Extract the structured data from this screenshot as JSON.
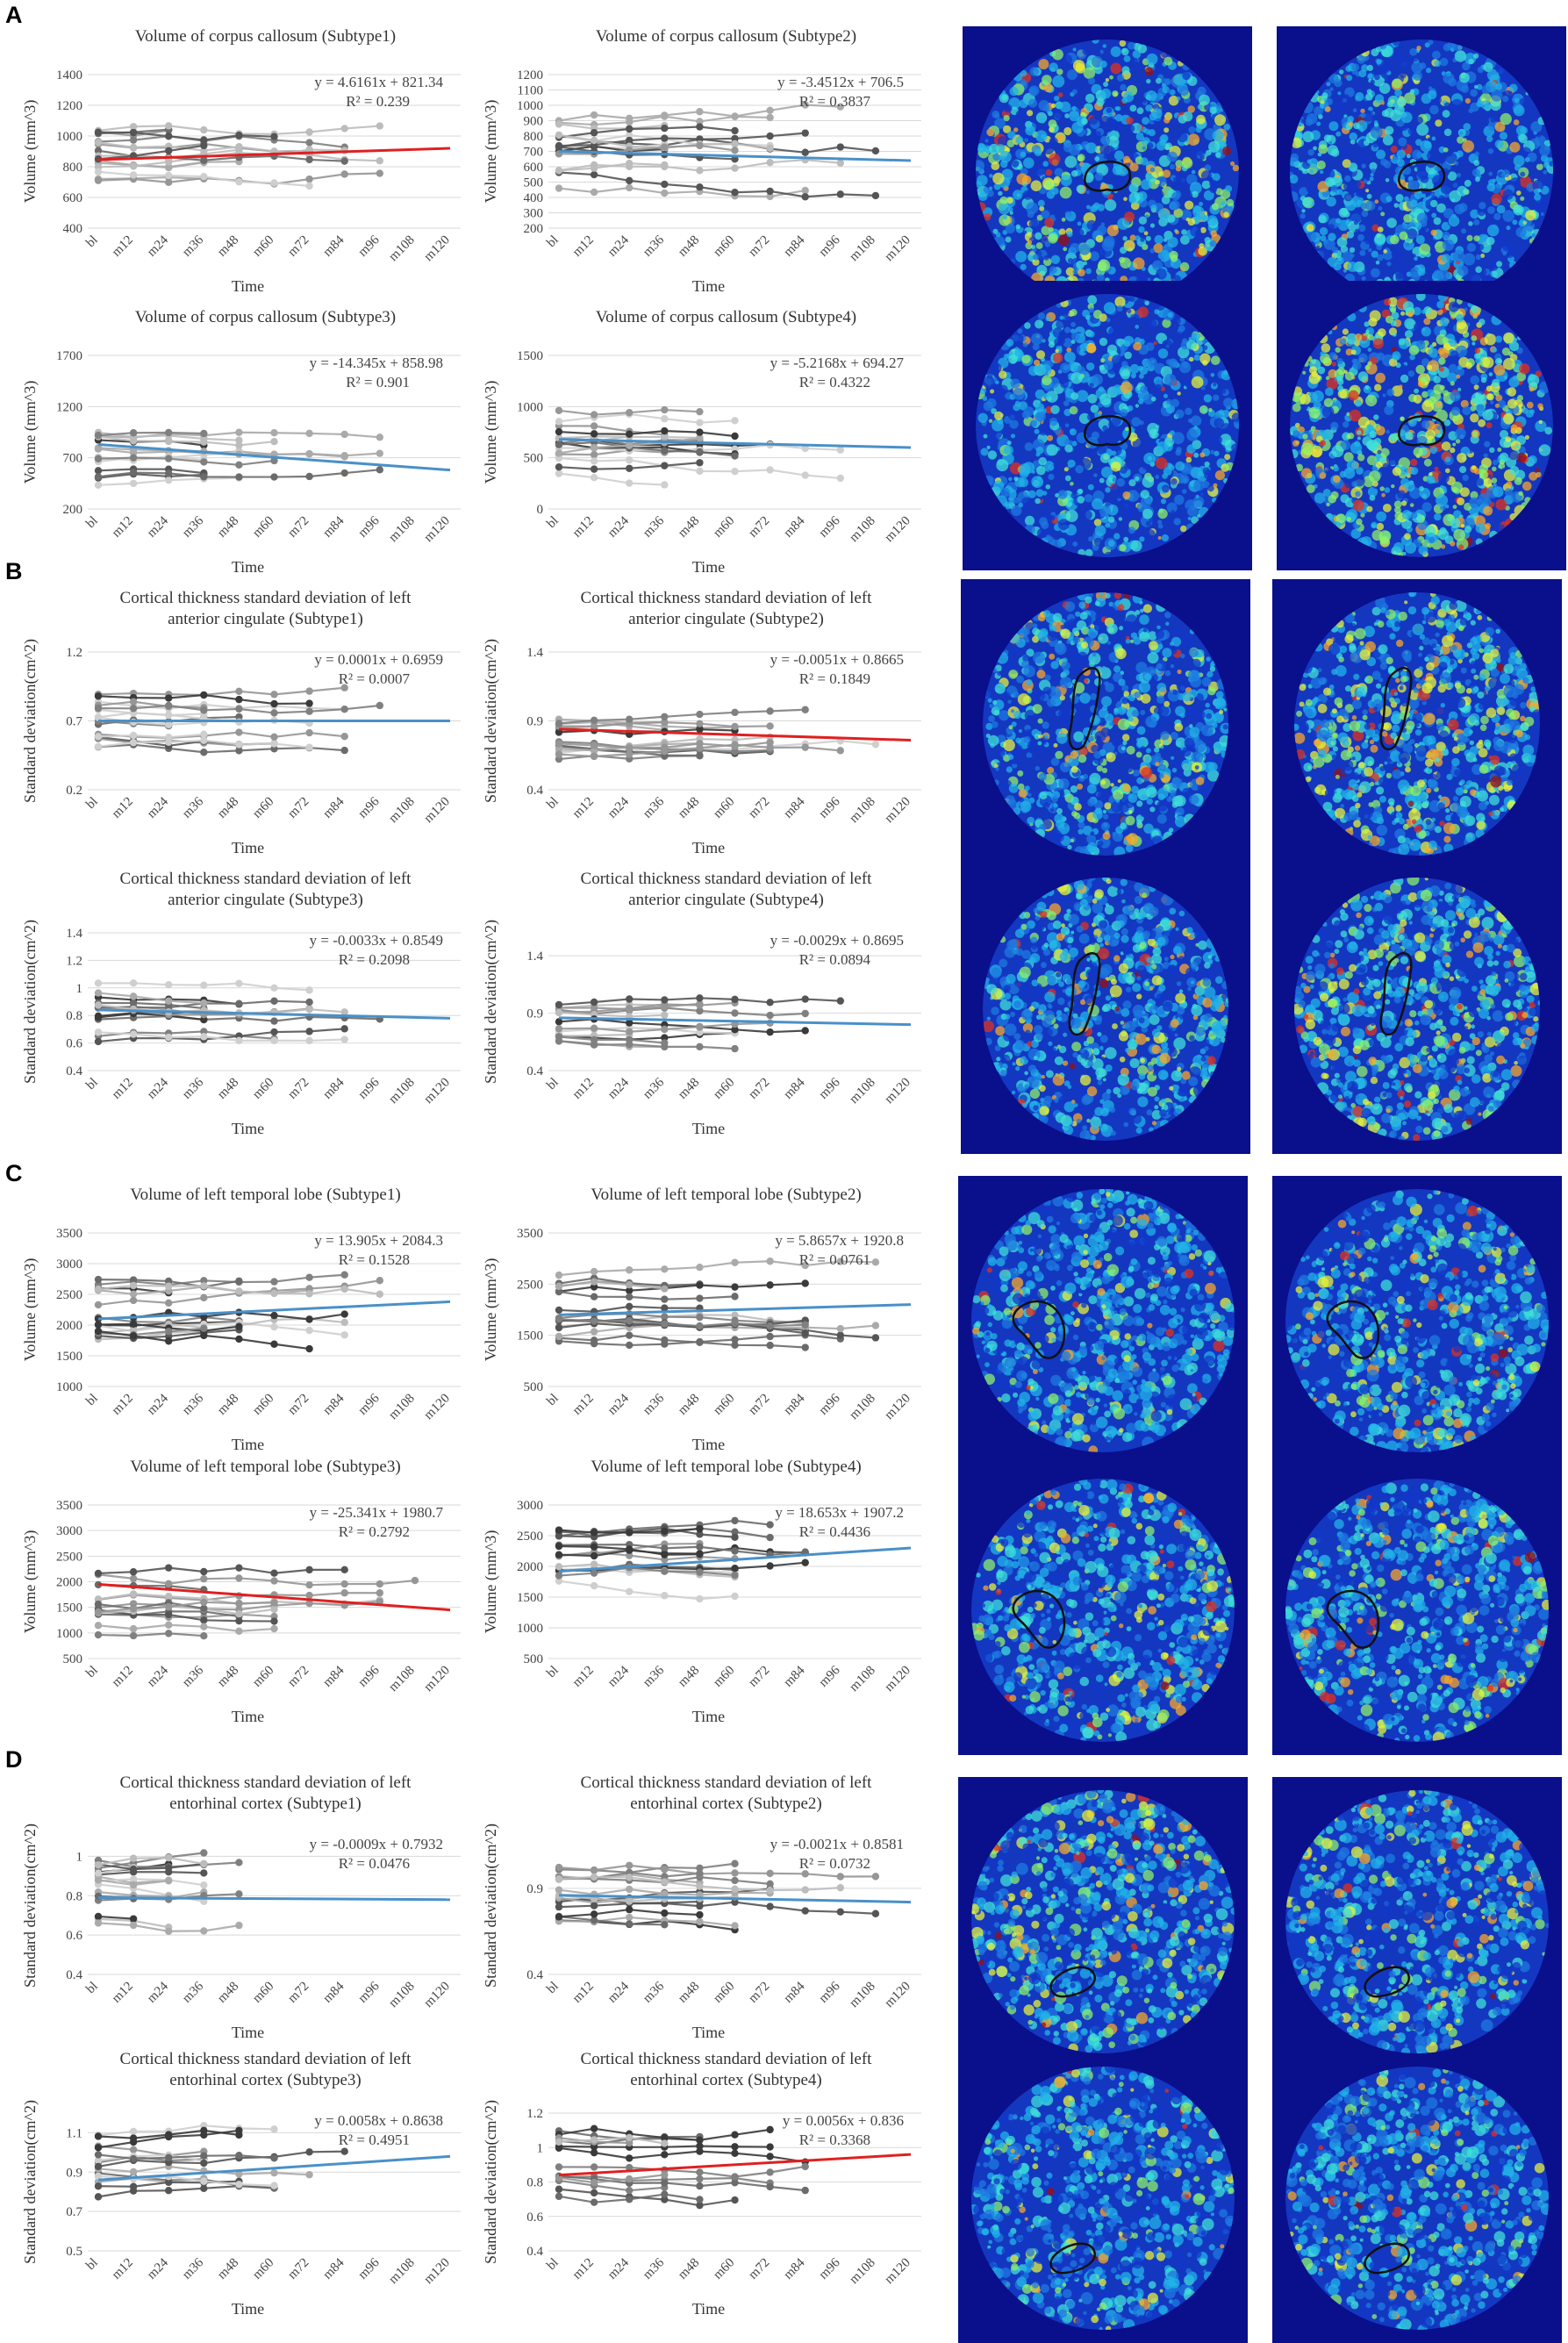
{
  "panel_labels": [
    "A",
    "B",
    "C",
    "D"
  ],
  "colors": {
    "trend_blue": "#4a90c8",
    "trend_red": "#e02020",
    "brain_bg": "#0a0f8c",
    "roi_outline": "#111111"
  },
  "chart_data": [
    {
      "type": "line",
      "panel": "A",
      "title": [
        "Volume of corpus callosum (Subtype1)"
      ],
      "xlabel": "Time",
      "ylabel": "Volume (mm^3)",
      "categories": [
        "bl",
        "m12",
        "m24",
        "m36",
        "m48",
        "m60",
        "m72",
        "m84",
        "m96",
        "m108",
        "m120"
      ],
      "yticks": [
        400,
        600,
        800,
        1000,
        1200,
        1400
      ],
      "ylim": [
        400,
        1400
      ],
      "equation": "y = 4.6161x + 821.34",
      "r2": "R² = 0.239",
      "trend_color": "red",
      "trend": [
        846,
        920
      ],
      "npts": 9,
      "spread": 200,
      "nlines": 16
    },
    {
      "type": "line",
      "panel": "A",
      "title": [
        "Volume of corpus callosum (Subtype2)"
      ],
      "xlabel": "Time",
      "ylabel": "Volume (mm^3)",
      "categories": [
        "bl",
        "m12",
        "m24",
        "m36",
        "m48",
        "m60",
        "m72",
        "m84",
        "m96",
        "m108",
        "m120"
      ],
      "yticks": [
        200,
        300,
        400,
        500,
        600,
        700,
        800,
        900,
        1000,
        1100,
        1200
      ],
      "ylim": [
        200,
        1200
      ],
      "equation": "y = -3.4512x + 706.5",
      "r2": "R² = 0.3837",
      "trend_color": "blue",
      "trend": [
        700,
        640
      ],
      "npts": 10,
      "spread": 230,
      "nlines": 16
    },
    {
      "type": "line",
      "panel": "A",
      "title": [
        "Volume of corpus callosum (Subtype3)"
      ],
      "xlabel": "Time",
      "ylabel": "Volume (mm^3)",
      "categories": [
        "bl",
        "m12",
        "m24",
        "m36",
        "m48",
        "m60",
        "m72",
        "m84",
        "m96",
        "m108",
        "m120"
      ],
      "yticks": [
        200,
        700,
        1200,
        1700
      ],
      "ylim": [
        200,
        1700
      ],
      "equation": "y = -14.345x + 858.98",
      "r2": "R² = 0.901",
      "trend_color": "blue",
      "trend": [
        830,
        580
      ],
      "npts": 9,
      "spread": 240,
      "nlines": 14
    },
    {
      "type": "line",
      "panel": "A",
      "title": [
        "Volume of corpus callosum (Subtype4)"
      ],
      "xlabel": "Time",
      "ylabel": "Volume (mm^3)",
      "categories": [
        "bl",
        "m12",
        "m24",
        "m36",
        "m48",
        "m60",
        "m72",
        "m84",
        "m96",
        "m108",
        "m120"
      ],
      "yticks": [
        0,
        500,
        1000,
        1500
      ],
      "ylim": [
        0,
        1500
      ],
      "equation": "y = -5.2168x + 694.27",
      "r2": "R² = 0.4322",
      "trend_color": "blue",
      "trend": [
        680,
        600
      ],
      "npts": 9,
      "spread": 320,
      "nlines": 16
    },
    {
      "type": "line",
      "panel": "B",
      "title": [
        "Cortical thickness standard deviation of left",
        "anterior cingulate (Subtype1)"
      ],
      "xlabel": "Time",
      "ylabel": "Standard deviation(cm^2)",
      "categories": [
        "bl",
        "m12",
        "m24",
        "m36",
        "m48",
        "m60",
        "m72",
        "m84",
        "m96",
        "m108",
        "m120"
      ],
      "yticks": [
        0.2,
        0.7,
        1.2
      ],
      "ylim": [
        0.2,
        1.2
      ],
      "equation": "y = 0.0001x + 0.6959",
      "r2": "R² = 0.0007",
      "trend_color": "blue",
      "trend": [
        0.7,
        0.7
      ],
      "npts": 9,
      "spread": 0.2,
      "nlines": 16
    },
    {
      "type": "line",
      "panel": "B",
      "title": [
        "Cortical thickness standard deviation of left",
        "anterior cingulate (Subtype2)"
      ],
      "xlabel": "Time",
      "ylabel": "Standard deviation(cm^2)",
      "categories": [
        "bl",
        "m12",
        "m24",
        "m36",
        "m48",
        "m60",
        "m72",
        "m84",
        "m96",
        "m108",
        "m120"
      ],
      "yticks": [
        0.4,
        0.9,
        1.4
      ],
      "ylim": [
        0.4,
        1.4
      ],
      "equation": "y = -0.0051x + 0.8665",
      "r2": "R² = 0.1849",
      "trend_color": "red",
      "trend": [
        0.84,
        0.76
      ],
      "npts": 10,
      "spread": 0.18,
      "nlines": 16
    },
    {
      "type": "line",
      "panel": "B",
      "title": [
        "Cortical thickness standard deviation of left",
        "anterior cingulate (Subtype3)"
      ],
      "xlabel": "Time",
      "ylabel": "Standard deviation(cm^2)",
      "categories": [
        "bl",
        "m12",
        "m24",
        "m36",
        "m48",
        "m60",
        "m72",
        "m84",
        "m96",
        "m108",
        "m120"
      ],
      "yticks": [
        0.4,
        0.6,
        0.8,
        1,
        1.2,
        1.4
      ],
      "ylim": [
        0.4,
        1.4
      ],
      "equation": "y = -0.0033x + 0.8549",
      "r2": "R² = 0.2098",
      "trend_color": "blue",
      "trend": [
        0.84,
        0.78
      ],
      "npts": 9,
      "spread": 0.2,
      "nlines": 14
    },
    {
      "type": "line",
      "panel": "B",
      "title": [
        "Cortical thickness standard deviation of left",
        "anterior cingulate (Subtype4)"
      ],
      "xlabel": "Time",
      "ylabel": "Standard deviation(cm^2)",
      "categories": [
        "bl",
        "m12",
        "m24",
        "m36",
        "m48",
        "m60",
        "m72",
        "m84",
        "m96",
        "m108",
        "m120"
      ],
      "yticks": [
        0.4,
        0.9,
        1.4
      ],
      "ylim": [
        0.4,
        1.6
      ],
      "equation": "y = -0.0029x + 0.8695",
      "r2": "R² = 0.0894",
      "trend_color": "blue",
      "trend": [
        0.86,
        0.8
      ],
      "npts": 9,
      "spread": 0.2,
      "nlines": 14
    },
    {
      "type": "line",
      "panel": "C",
      "title": [
        "Volume of left temporal lobe (Subtype1)"
      ],
      "xlabel": "Time",
      "ylabel": "Volume (mm^3)",
      "categories": [
        "bl",
        "m12",
        "m24",
        "m36",
        "m48",
        "m60",
        "m72",
        "m84",
        "m96",
        "m108",
        "m120"
      ],
      "yticks": [
        1000,
        1500,
        2000,
        2500,
        3000,
        3500
      ],
      "ylim": [
        1000,
        3500
      ],
      "equation": "y = 13.905x + 2084.3",
      "r2": "R² = 0.1528",
      "trend_color": "blue",
      "trend": [
        2100,
        2380
      ],
      "npts": 9,
      "spread": 550,
      "nlines": 16
    },
    {
      "type": "line",
      "panel": "C",
      "title": [
        "Volume of left temporal lobe (Subtype2)"
      ],
      "xlabel": "Time",
      "ylabel": "Volume (mm^3)",
      "categories": [
        "bl",
        "m12",
        "m24",
        "m36",
        "m48",
        "m60",
        "m72",
        "m84",
        "m96",
        "m108",
        "m120"
      ],
      "yticks": [
        500,
        1500,
        2500,
        3500
      ],
      "ylim": [
        500,
        3500
      ],
      "equation": "y = 5.8657x + 1920.8",
      "r2": "R² = 0.0761",
      "trend_color": "blue",
      "trend": [
        1900,
        2100
      ],
      "npts": 10,
      "spread": 600,
      "nlines": 16
    },
    {
      "type": "line",
      "panel": "C",
      "title": [
        "Volume of left temporal lobe (Subtype3)"
      ],
      "xlabel": "Time",
      "ylabel": "Volume (mm^3)",
      "categories": [
        "bl",
        "m12",
        "m24",
        "m36",
        "m48",
        "m60",
        "m72",
        "m84",
        "m96",
        "m108",
        "m120"
      ],
      "yticks": [
        500,
        1000,
        1500,
        2000,
        2500,
        3000,
        3500
      ],
      "ylim": [
        500,
        3500
      ],
      "equation": "y = -25.341x + 1980.7",
      "r2": "R² = 0.2792",
      "trend_color": "red",
      "trend": [
        1950,
        1450
      ],
      "npts": 10,
      "spread": 650,
      "nlines": 14
    },
    {
      "type": "line",
      "panel": "C",
      "title": [
        "Volume of left temporal lobe (Subtype4)"
      ],
      "xlabel": "Time",
      "ylabel": "Volume (mm^3)",
      "categories": [
        "bl",
        "m12",
        "m24",
        "m36",
        "m48",
        "m60",
        "m72",
        "m84",
        "m96",
        "m108",
        "m120"
      ],
      "yticks": [
        500,
        1000,
        1500,
        2000,
        2500,
        3000
      ],
      "ylim": [
        500,
        3000
      ],
      "equation": "y = 18.653x + 1907.2",
      "r2": "R² = 0.4436",
      "trend_color": "blue",
      "trend": [
        1920,
        2300
      ],
      "npts": 9,
      "spread": 550,
      "nlines": 16
    },
    {
      "type": "line",
      "panel": "D",
      "title": [
        "Cortical thickness standard deviation of left",
        "entorhinal cortex (Subtype1)"
      ],
      "xlabel": "Time",
      "ylabel": "Standard deviation(cm^2)",
      "categories": [
        "bl",
        "m12",
        "m24",
        "m36",
        "m48",
        "m60",
        "m72",
        "m84",
        "m96",
        "m108",
        "m120"
      ],
      "yticks": [
        0.4,
        0.6,
        0.8,
        1
      ],
      "ylim": [
        0.4,
        1.1
      ],
      "equation": "y = -0.0009x + 0.7932",
      "r2": "R² = 0.0476",
      "trend_color": "blue",
      "trend": [
        0.79,
        0.78
      ],
      "npts": 5,
      "spread": 0.2,
      "nlines": 18
    },
    {
      "type": "line",
      "panel": "D",
      "title": [
        "Cortical thickness standard deviation of left",
        "entorhinal cortex (Subtype2)"
      ],
      "xlabel": "Time",
      "ylabel": "Standard deviation(cm^2)",
      "categories": [
        "bl",
        "m12",
        "m24",
        "m36",
        "m48",
        "m60",
        "m72",
        "m84",
        "m96",
        "m108",
        "m120"
      ],
      "yticks": [
        0.4,
        0.9
      ],
      "ylim": [
        0.4,
        1.2
      ],
      "equation": "y = -0.0021x + 0.8581",
      "r2": "R² = 0.0732",
      "trend_color": "blue",
      "trend": [
        0.86,
        0.82
      ],
      "npts": 10,
      "spread": 0.18,
      "nlines": 16
    },
    {
      "type": "line",
      "panel": "D",
      "title": [
        "Cortical thickness standard deviation of left",
        "entorhinal cortex (Subtype3)"
      ],
      "xlabel": "Time",
      "ylabel": "Standard deviation(cm^2)",
      "categories": [
        "bl",
        "m12",
        "m24",
        "m36",
        "m48",
        "m60",
        "m72",
        "m84",
        "m96",
        "m108",
        "m120"
      ],
      "yticks": [
        0.5,
        0.7,
        0.9,
        1.1
      ],
      "ylim": [
        0.5,
        1.2
      ],
      "equation": "y = 0.0058x + 0.8638",
      "r2": "R² = 0.4951",
      "trend_color": "blue",
      "trend": [
        0.86,
        0.98
      ],
      "npts": 9,
      "spread": 0.18,
      "nlines": 14
    },
    {
      "type": "line",
      "panel": "D",
      "title": [
        "Cortical thickness standard deviation of left",
        "entorhinal cortex (Subtype4)"
      ],
      "xlabel": "Time",
      "ylabel": "Standard deviation(cm^2)",
      "categories": [
        "bl",
        "m12",
        "m24",
        "m36",
        "m48",
        "m60",
        "m72",
        "m84",
        "m96",
        "m108",
        "m120"
      ],
      "yticks": [
        0.4,
        0.6,
        0.8,
        1,
        1.2
      ],
      "ylim": [
        0.4,
        1.2
      ],
      "equation": "y = 0.0056x + 0.836",
      "r2": "R² = 0.3368",
      "trend_color": "red",
      "trend": [
        0.84,
        0.96
      ],
      "npts": 8,
      "spread": 0.2,
      "nlines": 14
    }
  ],
  "brain_maps": [
    {
      "panel": "A",
      "roi": "corpus-callosum",
      "shape": "round",
      "hot": 0.45
    },
    {
      "panel": "A",
      "roi": "corpus-callosum",
      "shape": "round",
      "hot": 0.25
    },
    {
      "panel": "A",
      "roi": "corpus-callosum",
      "shape": "round",
      "hot": 0.2
    },
    {
      "panel": "A",
      "roi": "corpus-callosum",
      "shape": "round",
      "hot": 0.85
    },
    {
      "panel": "B",
      "roi": "anterior-cingulate",
      "shape": "oval",
      "hot": 0.3
    },
    {
      "panel": "B",
      "roi": "anterior-cingulate",
      "shape": "oval",
      "hot": 0.5
    },
    {
      "panel": "B",
      "roi": "anterior-cingulate",
      "shape": "oval",
      "hot": 0.35
    },
    {
      "panel": "B",
      "roi": "anterior-cingulate",
      "shape": "oval",
      "hot": 0.4
    },
    {
      "panel": "C",
      "roi": "left-temporal-lobe",
      "shape": "round",
      "hot": 0.25
    },
    {
      "panel": "C",
      "roi": "left-temporal-lobe",
      "shape": "round",
      "hot": 0.3
    },
    {
      "panel": "C",
      "roi": "left-temporal-lobe",
      "shape": "round",
      "hot": 0.3
    },
    {
      "panel": "C",
      "roi": "left-temporal-lobe",
      "shape": "round",
      "hot": 0.3
    },
    {
      "panel": "D",
      "roi": "entorhinal-cortex",
      "shape": "round",
      "hot": 0.4
    },
    {
      "panel": "D",
      "roi": "entorhinal-cortex",
      "shape": "round",
      "hot": 0.3
    },
    {
      "panel": "D",
      "roi": "entorhinal-cortex",
      "shape": "round",
      "hot": 0.2
    },
    {
      "panel": "D",
      "roi": "entorhinal-cortex",
      "shape": "round",
      "hot": 0.2
    }
  ]
}
